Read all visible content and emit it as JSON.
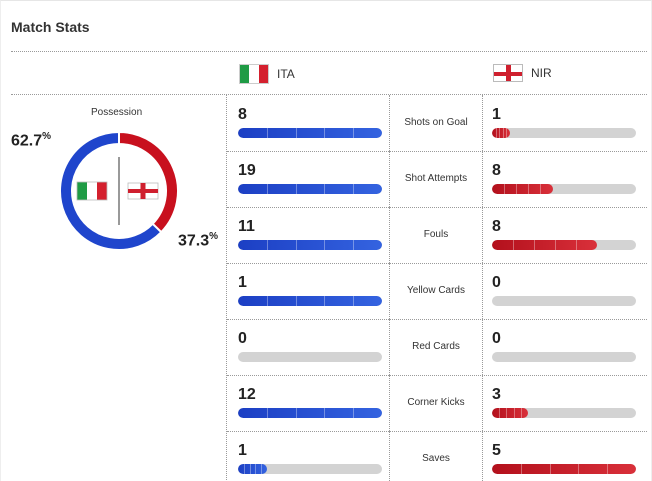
{
  "header": {
    "title": "Match Stats"
  },
  "teams": {
    "home": {
      "code": "ITA",
      "flag": "italy-flag",
      "color": "#1f45cc"
    },
    "away": {
      "code": "NIR",
      "flag": "northern-ireland-flag",
      "color": "#c8101e"
    }
  },
  "possession": {
    "label": "Possession",
    "home_value": "62.7",
    "away_value": "37.3",
    "unit": "%",
    "home_fraction": 0.627
  },
  "stats": [
    {
      "name": "Shots on Goal",
      "home": "8",
      "away": "1",
      "home_fill": 1.0,
      "away_fill": 0.125
    },
    {
      "name": "Shot Attempts",
      "home": "19",
      "away": "8",
      "home_fill": 1.0,
      "away_fill": 0.421
    },
    {
      "name": "Fouls",
      "home": "11",
      "away": "8",
      "home_fill": 1.0,
      "away_fill": 0.727
    },
    {
      "name": "Yellow Cards",
      "home": "1",
      "away": "0",
      "home_fill": 1.0,
      "away_fill": 0
    },
    {
      "name": "Red Cards",
      "home": "0",
      "away": "0",
      "home_fill": 0,
      "away_fill": 0
    },
    {
      "name": "Corner Kicks",
      "home": "12",
      "away": "3",
      "home_fill": 1.0,
      "away_fill": 0.25
    },
    {
      "name": "Saves",
      "home": "1",
      "away": "5",
      "home_fill": 0.2,
      "away_fill": 1.0
    }
  ]
}
